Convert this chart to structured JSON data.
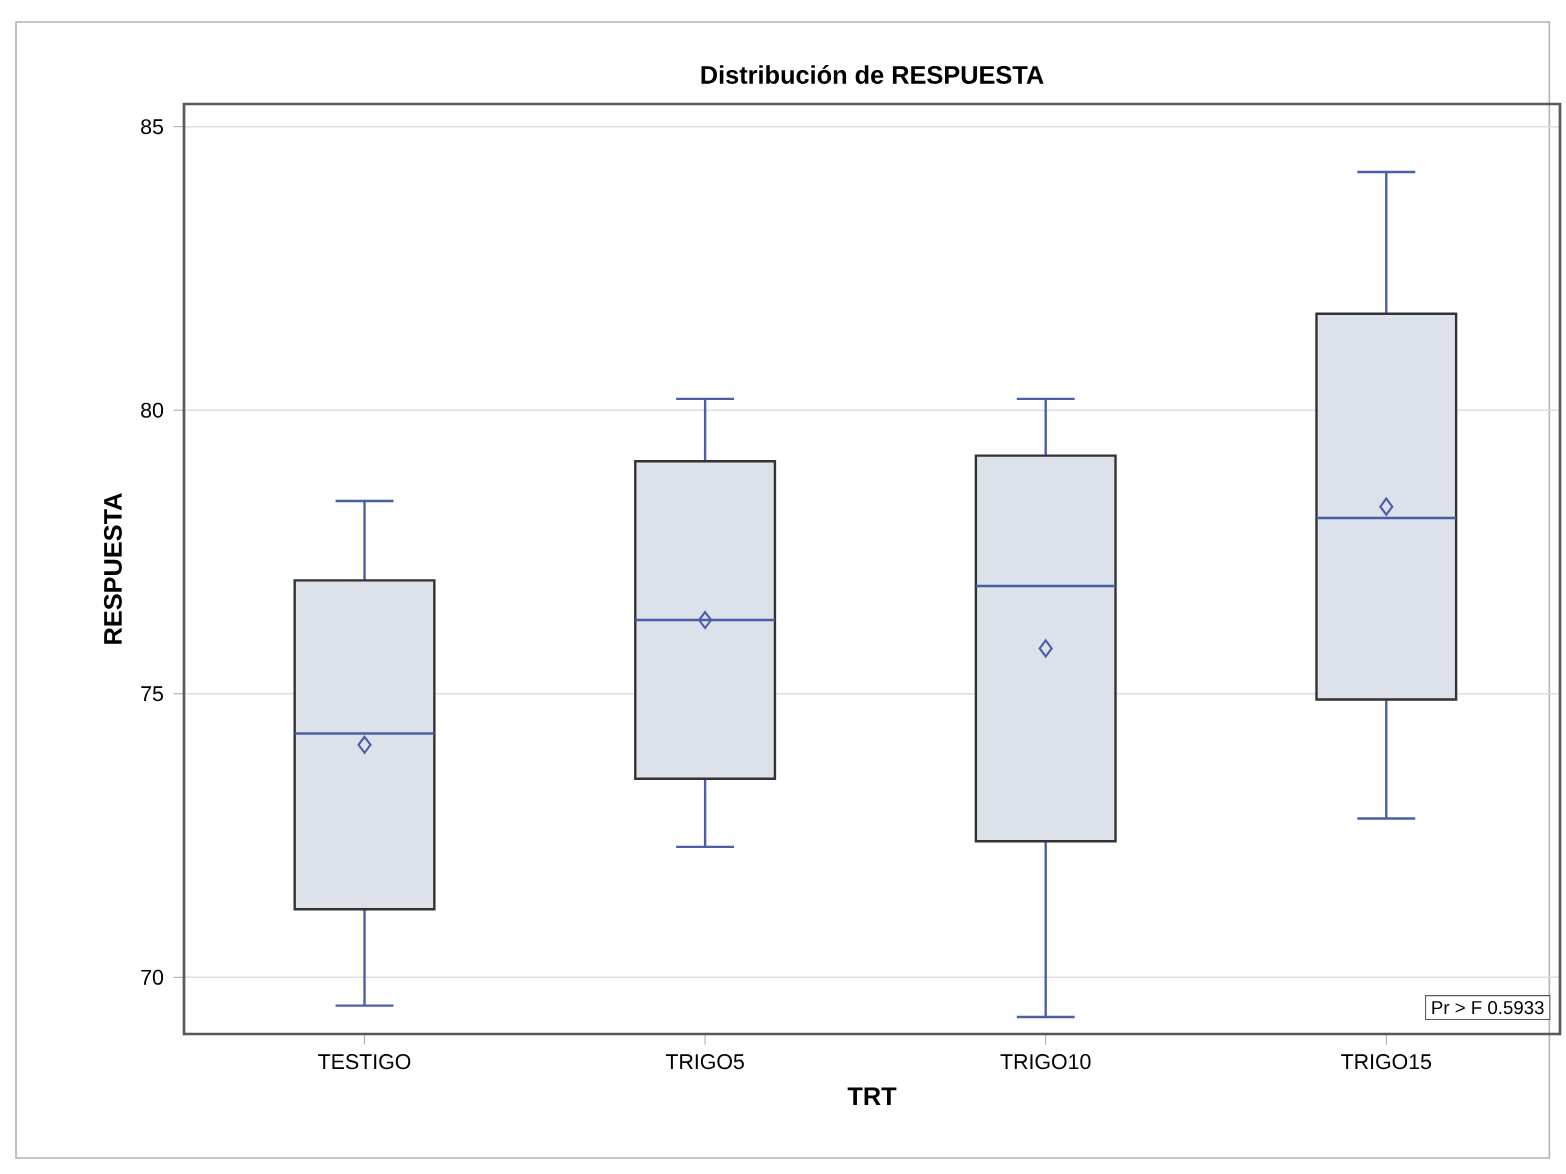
{
  "chart_data": {
    "type": "box",
    "title": "Distribución de RESPUESTA",
    "xlabel": "TRT",
    "ylabel": "RESPUESTA",
    "categories": [
      "TESTIGO",
      "TRIGO5",
      "TRIGO10",
      "TRIGO15"
    ],
    "boxes": [
      {
        "low": 69.5,
        "q1": 71.2,
        "median": 74.3,
        "q3": 77.0,
        "high": 78.4,
        "mean": 74.1
      },
      {
        "low": 72.3,
        "q1": 73.5,
        "median": 76.3,
        "q3": 79.1,
        "high": 80.2,
        "mean": 76.3
      },
      {
        "low": 69.3,
        "q1": 72.4,
        "median": 76.9,
        "q3": 79.2,
        "high": 80.2,
        "mean": 75.8
      },
      {
        "low": 72.8,
        "q1": 74.9,
        "median": 78.1,
        "q3": 81.7,
        "high": 84.2,
        "mean": 78.3
      }
    ],
    "color": "#dde1ea",
    "marker": "diamond",
    "ylim": [
      69,
      85.4
    ],
    "yticks": [
      70,
      75,
      80,
      85
    ],
    "grid": "y",
    "annotations": [
      "Pr > F  0.5933"
    ]
  }
}
